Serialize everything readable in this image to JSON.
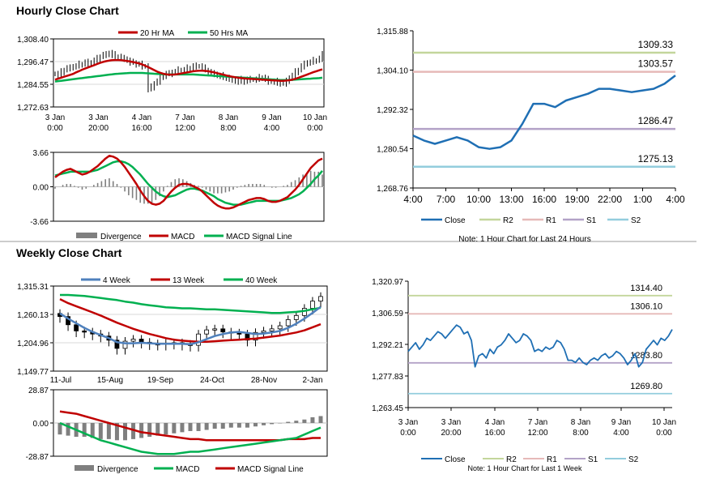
{
  "titles": {
    "hourly": "Hourly Close Chart",
    "weekly": "Weekly Close Chart"
  },
  "colors": {
    "ma_short": "#c00000",
    "ma_long": "#00b050",
    "week4": "#4f81bd",
    "close": "#1f6fb4",
    "r2": "#c3d69b",
    "r1": "#e6b9b8",
    "s1": "#b3a2c7",
    "s2": "#93cddd",
    "divergence": "#7f7f7f"
  },
  "chart_data": [
    {
      "id": "hourly_price",
      "type": "ohlc",
      "ylim": [
        1272.63,
        1308.4
      ],
      "yticks": [
        "1,308.40",
        "1,296.47",
        "1,284.55",
        "1,272.63"
      ],
      "xticks": [
        [
          "3 Jan",
          "0:00"
        ],
        [
          "3 Jan",
          "20:00"
        ],
        [
          "4 Jan",
          "16:00"
        ],
        [
          "7 Jan",
          "12:00"
        ],
        [
          "8 Jan",
          "8:00"
        ],
        [
          "9 Jan",
          "4:00"
        ],
        [
          "10 Jan",
          "0:00"
        ]
      ],
      "legend": [
        "20 Hr MA",
        "50 Hrs MA"
      ],
      "close": [
        1290,
        1289,
        1291,
        1292,
        1293,
        1293,
        1294,
        1294,
        1295,
        1295,
        1296,
        1295,
        1296,
        1297,
        1298,
        1299,
        1300,
        1300,
        1301,
        1300,
        1299,
        1299,
        1298,
        1298,
        1297,
        1296,
        1296,
        1295,
        1295,
        1294,
        1294,
        1282,
        1283,
        1285,
        1286,
        1288,
        1289,
        1290,
        1290,
        1291,
        1291,
        1292,
        1292,
        1292,
        1293,
        1293,
        1294,
        1294,
        1294,
        1293,
        1292,
        1291,
        1290,
        1290,
        1289,
        1289,
        1288,
        1288,
        1287,
        1287,
        1286,
        1287,
        1286,
        1286,
        1287,
        1287,
        1287,
        1287,
        1288,
        1288,
        1287,
        1286,
        1286,
        1286,
        1285,
        1285,
        1285,
        1286,
        1288,
        1289,
        1291,
        1292,
        1294,
        1295,
        1296,
        1296,
        1297,
        1297,
        1298,
        1300
      ],
      "ma20": [
        1287,
        1287.5,
        1288,
        1288.5,
        1289,
        1289.5,
        1290,
        1290.8,
        1291.5,
        1292.2,
        1292.8,
        1293.4,
        1294,
        1294.6,
        1295.2,
        1295.8,
        1296.3,
        1296.7,
        1297,
        1297.2,
        1297.3,
        1297.3,
        1297.2,
        1297,
        1296.8,
        1296.5,
        1296.2,
        1295.9,
        1295.5,
        1295,
        1294.3,
        1293.6,
        1292.8,
        1292,
        1291.2,
        1290.6,
        1290.1,
        1289.8,
        1289.6,
        1289.6,
        1289.7,
        1289.9,
        1290.2,
        1290.5,
        1290.8,
        1291.1,
        1291.4,
        1291.6,
        1291.7,
        1291.7,
        1291.6,
        1291.4,
        1291.1,
        1290.8,
        1290.4,
        1290,
        1289.6,
        1289.2,
        1288.8,
        1288.5,
        1288.2,
        1288,
        1287.8,
        1287.6,
        1287.5,
        1287.4,
        1287.3,
        1287.2,
        1287.1,
        1287,
        1286.9,
        1286.8,
        1286.7,
        1286.6,
        1286.5,
        1286.4,
        1286.4,
        1286.5,
        1286.7,
        1287,
        1287.4,
        1287.9,
        1288.5,
        1289.1,
        1289.7,
        1290.3,
        1290.9,
        1291.4,
        1291.9,
        1292.4
      ],
      "ma50": [
        1286,
        1286.2,
        1286.4,
        1286.6,
        1286.8,
        1287,
        1287.2,
        1287.4,
        1287.6,
        1287.8,
        1288,
        1288.2,
        1288.4,
        1288.6,
        1288.8,
        1289,
        1289.2,
        1289.4,
        1289.6,
        1289.8,
        1290,
        1290.1,
        1290.2,
        1290.3,
        1290.4,
        1290.5,
        1290.5,
        1290.5,
        1290.5,
        1290.5,
        1290.4,
        1290.3,
        1290.2,
        1290.1,
        1290,
        1289.9,
        1289.8,
        1289.7,
        1289.7,
        1289.7,
        1289.7,
        1289.7,
        1289.7,
        1289.7,
        1289.7,
        1289.7,
        1289.7,
        1289.6,
        1289.5,
        1289.4,
        1289.3,
        1289.2,
        1289.1,
        1289,
        1288.9,
        1288.8,
        1288.7,
        1288.6,
        1288.5,
        1288.4,
        1288.3,
        1288.2,
        1288.1,
        1288,
        1287.9,
        1287.8,
        1287.7,
        1287.6,
        1287.5,
        1287.4,
        1287.3,
        1287.2,
        1287.1,
        1287,
        1286.9,
        1286.8,
        1286.8,
        1286.8,
        1286.8,
        1286.9,
        1287,
        1287.1,
        1287.2,
        1287.3,
        1287.4,
        1287.5,
        1287.6,
        1287.7,
        1287.8,
        1288
      ]
    },
    {
      "id": "hourly_macd",
      "type": "macd",
      "ylim": [
        -3.66,
        3.66
      ],
      "yticks": [
        "3.66",
        "0.00",
        "-3.66"
      ],
      "legend": [
        "Divergence",
        "MACD",
        "MACD Signal Line"
      ],
      "macd": [
        1.0,
        1.3,
        1.6,
        1.8,
        1.9,
        1.7,
        1.5,
        1.3,
        1.4,
        1.6,
        1.9,
        2.2,
        2.6,
        3.0,
        3.3,
        3.2,
        3.0,
        2.6,
        2.1,
        1.5,
        0.9,
        0.3,
        -0.4,
        -1.0,
        -1.5,
        -1.8,
        -1.9,
        -1.8,
        -1.5,
        -1.0,
        -0.5,
        -0.1,
        0.2,
        0.3,
        0.3,
        0.2,
        0.0,
        -0.2,
        -0.5,
        -0.9,
        -1.3,
        -1.7,
        -2.0,
        -2.2,
        -2.3,
        -2.3,
        -2.2,
        -2.0,
        -1.8,
        -1.6,
        -1.4,
        -1.3,
        -1.2,
        -1.2,
        -1.3,
        -1.5,
        -1.6,
        -1.6,
        -1.5,
        -1.3,
        -1.1,
        -0.7,
        -0.3,
        0.2,
        0.8,
        1.4,
        2.0,
        2.4,
        2.8,
        3.0
      ],
      "signal": [
        1.2,
        1.3,
        1.4,
        1.5,
        1.6,
        1.6,
        1.6,
        1.6,
        1.6,
        1.6,
        1.7,
        1.8,
        2.0,
        2.2,
        2.4,
        2.6,
        2.7,
        2.7,
        2.6,
        2.4,
        2.1,
        1.7,
        1.3,
        0.8,
        0.3,
        -0.1,
        -0.5,
        -0.8,
        -1.0,
        -1.1,
        -1.0,
        -0.9,
        -0.7,
        -0.5,
        -0.3,
        -0.2,
        -0.2,
        -0.3,
        -0.4,
        -0.6,
        -0.8,
        -1.0,
        -1.3,
        -1.5,
        -1.7,
        -1.8,
        -1.9,
        -1.9,
        -1.9,
        -1.8,
        -1.7,
        -1.6,
        -1.5,
        -1.5,
        -1.5,
        -1.5,
        -1.5,
        -1.5,
        -1.5,
        -1.4,
        -1.3,
        -1.2,
        -1.0,
        -0.8,
        -0.5,
        -0.1,
        0.3,
        0.8,
        1.2,
        1.7
      ]
    },
    {
      "id": "hourly_close",
      "type": "line",
      "ylim": [
        1268.76,
        1315.88
      ],
      "yticks": [
        "1,315.88",
        "1,304.10",
        "1,292.32",
        "1,280.54",
        "1,268.76"
      ],
      "xticks": [
        "4:00",
        "7:00",
        "10:00",
        "13:00",
        "16:00",
        "19:00",
        "22:00",
        "1:00",
        "4:00"
      ],
      "close": [
        1284.5,
        1283.0,
        1282.0,
        1283.0,
        1284.0,
        1283.0,
        1281.0,
        1280.5,
        1281.0,
        1283.0,
        1288.0,
        1294.0,
        1294.0,
        1293.0,
        1295.0,
        1296.0,
        1297.0,
        1298.5,
        1298.5,
        1298.0,
        1297.5,
        1298.0,
        1298.5,
        1300.0,
        1302.5
      ],
      "levels": [
        {
          "name": "R2",
          "value": 1309.33,
          "label": "1309.33"
        },
        {
          "name": "R1",
          "value": 1303.57,
          "label": "1303.57"
        },
        {
          "name": "S1",
          "value": 1286.47,
          "label": "1286.47"
        },
        {
          "name": "S2",
          "value": 1275.13,
          "label": "1275.13"
        }
      ],
      "legend": [
        "Close",
        "R2",
        "R1",
        "S1",
        "S2"
      ],
      "note": "Note: 1 Hour Chart for Last 24 Hours"
    },
    {
      "id": "weekly_price",
      "type": "ohlc",
      "ylim": [
        1149.77,
        1315.31
      ],
      "yticks": [
        "1,315.31",
        "1,260.13",
        "1,204.96",
        "1,149.77"
      ],
      "xticks": [
        "11-Jul",
        "15-Aug",
        "19-Sep",
        "24-Oct",
        "28-Nov",
        "2-Jan"
      ],
      "legend": [
        "4 Week",
        "13 Week",
        "40 Week"
      ],
      "close": [
        1256,
        1240,
        1228,
        1226,
        1222,
        1218,
        1210,
        1194,
        1208,
        1212,
        1206,
        1203,
        1202,
        1204,
        1205,
        1202,
        1200,
        1222,
        1230,
        1232,
        1226,
        1224,
        1222,
        1210,
        1225,
        1228,
        1232,
        1238,
        1250,
        1258,
        1272,
        1286,
        1295
      ],
      "week4": [
        1262,
        1252,
        1243,
        1234,
        1226,
        1220,
        1214,
        1206,
        1204,
        1204,
        1205,
        1204,
        1203,
        1203,
        1203,
        1203,
        1202,
        1206,
        1212,
        1218,
        1222,
        1225,
        1226,
        1224,
        1222,
        1223,
        1225,
        1228,
        1234,
        1242,
        1252,
        1263,
        1275
      ],
      "week13": [
        1290,
        1282,
        1276,
        1270,
        1264,
        1258,
        1251,
        1244,
        1238,
        1232,
        1227,
        1222,
        1218,
        1214,
        1211,
        1209,
        1208,
        1207,
        1207,
        1208,
        1209,
        1210,
        1211,
        1212,
        1213,
        1215,
        1217,
        1219,
        1222,
        1225,
        1229,
        1235,
        1241
      ],
      "week40": [
        1298,
        1298,
        1297,
        1296,
        1294,
        1292,
        1290,
        1288,
        1285,
        1283,
        1280,
        1278,
        1276,
        1274,
        1273,
        1272,
        1272,
        1271,
        1270,
        1270,
        1269,
        1268,
        1267,
        1266,
        1265,
        1264,
        1263,
        1263,
        1264,
        1265,
        1267,
        1270,
        1273
      ]
    },
    {
      "id": "weekly_macd",
      "type": "macd",
      "ylim": [
        -28.87,
        28.87
      ],
      "yticks": [
        "28.87",
        "0.00",
        "-28.87"
      ],
      "legend": [
        "Divergence",
        "MACD",
        "MACD Signal Line"
      ],
      "divergence": [
        -10,
        -11,
        -12,
        -12,
        -13,
        -14,
        -14,
        -15,
        -15,
        -14,
        -13,
        -12,
        -11,
        -10,
        -9,
        -8,
        -7,
        -7,
        -6,
        -5,
        -5,
        -4,
        -4,
        -4,
        -3,
        -2,
        -1,
        0,
        1,
        2,
        3,
        5,
        6
      ],
      "macd": [
        0,
        -3,
        -6,
        -9,
        -12,
        -15,
        -17,
        -19,
        -21,
        -23,
        -25,
        -26,
        -27,
        -27,
        -27,
        -26,
        -25,
        -25,
        -24,
        -23,
        -22,
        -21,
        -20,
        -19,
        -18,
        -17,
        -16,
        -15,
        -14,
        -13,
        -10,
        -7,
        -4
      ],
      "signal": [
        10,
        9,
        8,
        6,
        4,
        2,
        0,
        -2,
        -4,
        -6,
        -8,
        -9,
        -10,
        -11,
        -12,
        -13,
        -14,
        -14,
        -15,
        -15,
        -15,
        -15,
        -15,
        -15,
        -15,
        -15,
        -15,
        -15,
        -14,
        -14,
        -14,
        -13,
        -13
      ]
    },
    {
      "id": "weekly_close",
      "type": "line",
      "ylim": [
        1263.45,
        1320.97
      ],
      "yticks": [
        "1,320.97",
        "1,306.59",
        "1,292.21",
        "1,277.83",
        "1,263.45"
      ],
      "xticks": [
        [
          "3 Jan",
          "0:00"
        ],
        [
          "3 Jan",
          "20:00"
        ],
        [
          "4 Jan",
          "16:00"
        ],
        [
          "7 Jan",
          "12:00"
        ],
        [
          "8 Jan",
          "8:00"
        ],
        [
          "9 Jan",
          "4:00"
        ],
        [
          "10 Jan",
          "0:00"
        ]
      ],
      "close": [
        1289,
        1291,
        1293,
        1290,
        1292,
        1295,
        1294,
        1296,
        1298,
        1297,
        1295,
        1297,
        1299,
        1301,
        1300,
        1297,
        1298,
        1294,
        1282,
        1287,
        1288,
        1286,
        1290,
        1288,
        1291,
        1292,
        1294,
        1297,
        1295,
        1293,
        1294,
        1297,
        1296,
        1294,
        1289,
        1290,
        1289,
        1291,
        1290,
        1291,
        1294,
        1293,
        1290,
        1285,
        1285,
        1284,
        1286,
        1284,
        1283,
        1285,
        1286,
        1285,
        1287,
        1288,
        1286,
        1287,
        1289,
        1288,
        1286,
        1283,
        1285,
        1288,
        1282,
        1284,
        1290,
        1292,
        1294,
        1292,
        1295,
        1294,
        1296,
        1299
      ],
      "levels": [
        {
          "name": "R2",
          "value": 1314.4,
          "label": "1314.40"
        },
        {
          "name": "R1",
          "value": 1306.1,
          "label": "1306.10"
        },
        {
          "name": "S1",
          "value": 1283.8,
          "label": "1283.80"
        },
        {
          "name": "S2",
          "value": 1269.8,
          "label": "1269.80"
        }
      ],
      "legend": [
        "Close",
        "R2",
        "R1",
        "S1",
        "S2"
      ],
      "note": "Note: 1 Hour Chart for Last 1 Week"
    }
  ]
}
